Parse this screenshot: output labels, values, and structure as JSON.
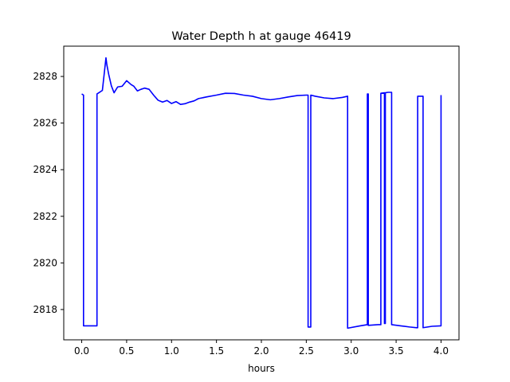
{
  "chart_data": {
    "type": "line",
    "title": "Water Depth h at gauge 46419",
    "xlabel": "hours",
    "ylabel": "",
    "xlim": [
      -0.2,
      4.2
    ],
    "ylim": [
      2816.7,
      2829.3
    ],
    "xticks": [
      0.0,
      0.5,
      1.0,
      1.5,
      2.0,
      2.5,
      3.0,
      3.5,
      4.0
    ],
    "xtick_labels": [
      "0.0",
      "0.5",
      "1.0",
      "1.5",
      "2.0",
      "2.5",
      "3.0",
      "3.5",
      "4.0"
    ],
    "yticks": [
      2818,
      2820,
      2822,
      2824,
      2826,
      2828
    ],
    "ytick_labels": [
      "2818",
      "2820",
      "2822",
      "2824",
      "2826",
      "2828"
    ],
    "grid": false,
    "colors": {
      "line": "#0000ff"
    },
    "series": [
      {
        "name": "",
        "x": [
          0.0,
          0.02,
          0.02,
          0.17,
          0.17,
          0.23,
          0.25,
          0.27,
          0.28,
          0.3,
          0.33,
          0.36,
          0.4,
          0.45,
          0.5,
          0.55,
          0.58,
          0.62,
          0.66,
          0.7,
          0.75,
          0.8,
          0.85,
          0.9,
          0.95,
          1.0,
          1.05,
          1.1,
          1.15,
          1.2,
          1.25,
          1.3,
          1.4,
          1.5,
          1.6,
          1.7,
          1.8,
          1.9,
          2.0,
          2.1,
          2.2,
          2.3,
          2.4,
          2.5,
          2.52,
          2.52,
          2.55,
          2.55,
          2.6,
          2.7,
          2.8,
          2.9,
          2.96,
          2.96,
          3.1,
          3.18,
          3.18,
          3.19,
          3.19,
          3.3,
          3.33,
          3.33,
          3.37,
          3.37,
          3.38,
          3.38,
          3.41,
          3.41,
          3.45,
          3.45,
          3.55,
          3.65,
          3.73,
          3.74,
          3.74,
          3.8,
          3.8,
          3.9,
          4.0,
          4.0
        ],
        "y": [
          2827.25,
          2827.2,
          2817.3,
          2817.3,
          2827.25,
          2827.4,
          2828.1,
          2828.8,
          2828.5,
          2828.1,
          2827.6,
          2827.3,
          2827.55,
          2827.58,
          2827.82,
          2827.65,
          2827.58,
          2827.38,
          2827.45,
          2827.5,
          2827.45,
          2827.2,
          2826.98,
          2826.9,
          2826.97,
          2826.84,
          2826.92,
          2826.8,
          2826.83,
          2826.9,
          2826.95,
          2827.05,
          2827.13,
          2827.2,
          2827.28,
          2827.27,
          2827.2,
          2827.15,
          2827.05,
          2827.0,
          2827.05,
          2827.12,
          2827.18,
          2827.2,
          2827.2,
          2817.25,
          2817.25,
          2827.2,
          2827.15,
          2827.08,
          2827.05,
          2827.1,
          2827.15,
          2817.2,
          2817.3,
          2817.35,
          2827.25,
          2827.25,
          2817.32,
          2817.35,
          2817.35,
          2827.28,
          2827.3,
          2817.4,
          2817.4,
          2827.3,
          2827.32,
          2827.32,
          2827.32,
          2817.35,
          2817.3,
          2817.25,
          2817.22,
          2817.22,
          2827.15,
          2827.15,
          2817.22,
          2817.28,
          2817.3,
          2827.2
        ]
      }
    ]
  }
}
